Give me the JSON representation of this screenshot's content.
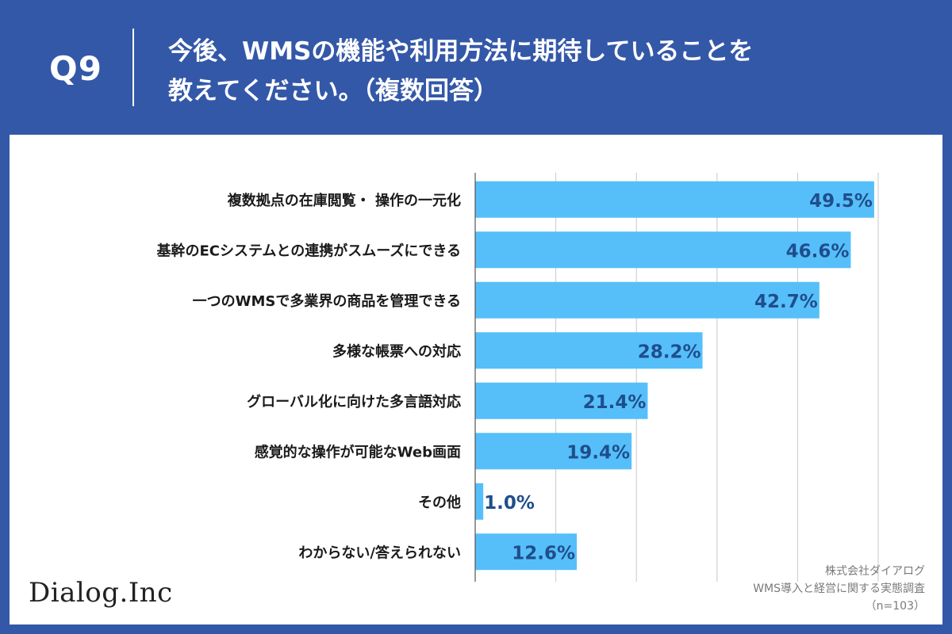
{
  "header": {
    "qnum": "Q9",
    "title_line1": "今後、WMSの機能や利用方法に期待していることを",
    "title_line2": "教えてください。（複数回答）"
  },
  "logo": "Dialog.Inc",
  "source": {
    "company": "株式会社ダイアログ",
    "survey": "WMS導入と経営に関する実態調査",
    "sample": "（n=103）"
  },
  "colors": {
    "background": "#3458a8",
    "bar": "#56bffa",
    "value_label": "#1f4e8c",
    "grid": "#c8c8c8"
  },
  "chart_data": {
    "type": "bar",
    "orientation": "horizontal",
    "categories": [
      "複数拠点の在庫閲覧・ 操作の一元化",
      "基幹のECシステムとの連携がスムーズにできる",
      "一つのWMSで多業界の商品を管理できる",
      "多様な帳票への対応",
      "グローバル化に向けた多言語対応",
      "感覚的な操作が可能なWeb画面",
      "その他",
      "わからない/答えられない"
    ],
    "values": [
      49.5,
      46.6,
      42.7,
      28.2,
      21.4,
      19.4,
      1.0,
      12.6
    ],
    "value_labels": [
      "49.5%",
      "46.6%",
      "42.7%",
      "28.2%",
      "21.4%",
      "19.4%",
      "1.0%",
      "12.6%"
    ],
    "title": "",
    "xlabel": "",
    "ylabel": "",
    "xlim": [
      0,
      50
    ],
    "grid": true
  }
}
